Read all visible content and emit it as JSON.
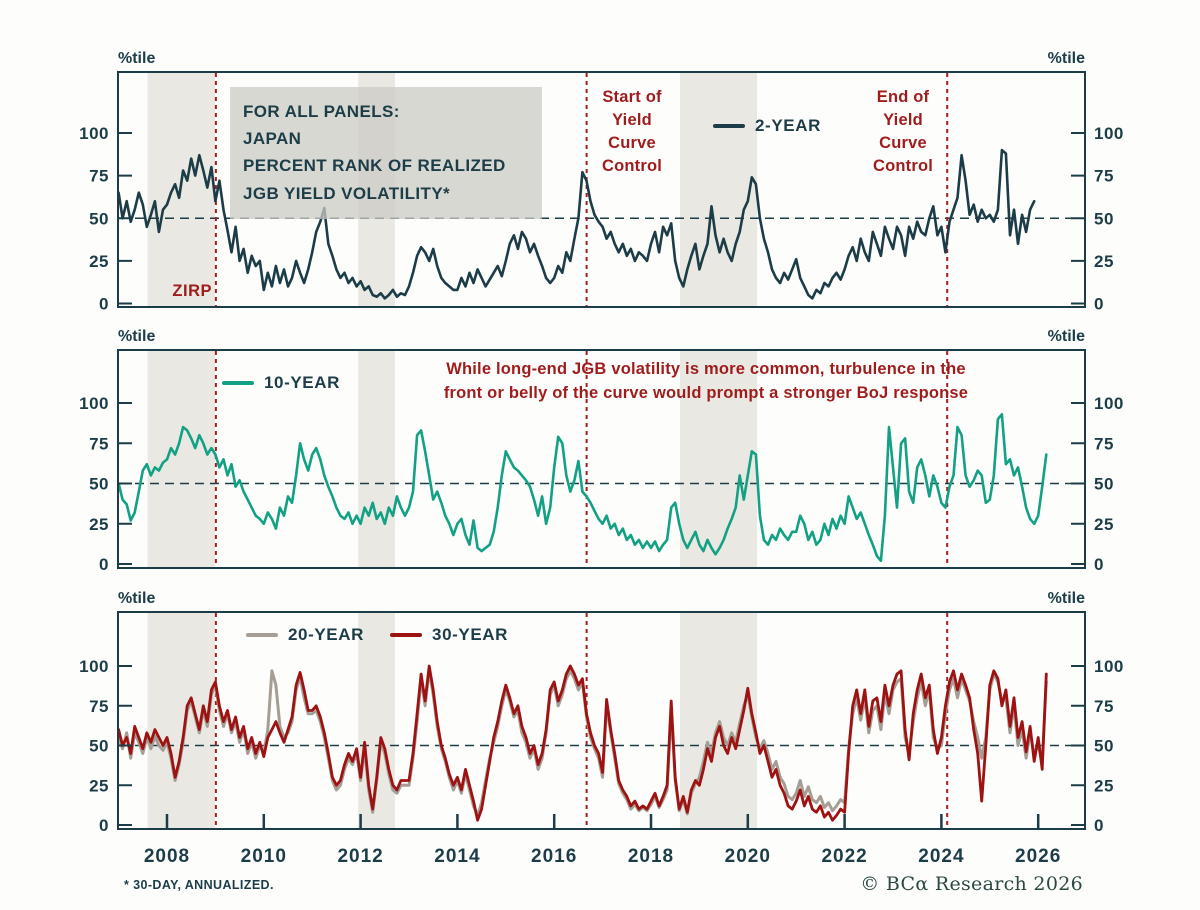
{
  "axis_unit_label": "%tile",
  "title_box": {
    "line1": "FOR ALL PANELS:",
    "line2": "JAPAN",
    "line3": "PERCENT RANK OF REALIZED",
    "line4": "JGB YIELD VOLATILITY*"
  },
  "annotations": {
    "zirp": "ZIRP",
    "start_ycc": {
      "lines": [
        "Start of",
        "Yield",
        "Curve",
        "Control"
      ]
    },
    "end_ycc": {
      "lines": [
        "End of",
        "Yield",
        "Curve",
        "Control"
      ]
    },
    "middle_note": {
      "line1": "While long-end JGB volatility is more common, turbulence in the",
      "line2": "front or belly of the curve would prompt a stronger BoJ response"
    }
  },
  "footer": {
    "footnote": "* 30-DAY, ANNUALIZED.",
    "copyright": "© BCα Research 2026"
  },
  "colors": {
    "dark": "#1c3d47",
    "event_red": "#a02020",
    "text_red": "#9e1c1c",
    "band": "#e9e8e2",
    "green": "#12a184",
    "gray": "#a59e95",
    "red_line": "#9e1212"
  },
  "chart_data": {
    "type": "line",
    "title": "Japan percent rank of realized JGB yield volatility (30-day, annualized)",
    "ylabel": "%tile",
    "ylim": [
      0,
      100
    ],
    "grid": "50%-dashed-line-only",
    "x_range": [
      2006.99,
      2026.97
    ],
    "x_ticks": [
      2008,
      2010,
      2012,
      2014,
      2016,
      2018,
      2020,
      2022,
      2024,
      2026
    ],
    "event_lines": [
      {
        "year": 2009.01,
        "label": "ZIRP"
      },
      {
        "year": 2016.67,
        "label": "Start of Yield Curve Control"
      },
      {
        "year": 2024.12,
        "label": "End of Yield Curve Control"
      }
    ],
    "shaded_bands": [
      [
        2007.6,
        2008.99
      ],
      [
        2011.95,
        2012.71
      ],
      [
        2018.6,
        2020.19
      ]
    ],
    "fifty_line": 50,
    "panels": [
      {
        "id": "panel-2-year",
        "legend": [
          {
            "label": "2-YEAR",
            "series": "two_year"
          }
        ],
        "series": [
          "two_year"
        ],
        "yticks": [
          0,
          25,
          50,
          75,
          100
        ]
      },
      {
        "id": "panel-10-year",
        "legend": [
          {
            "label": "10-YEAR",
            "series": "ten_year"
          }
        ],
        "series": [
          "ten_year"
        ],
        "yticks": [
          0,
          25,
          50,
          75,
          100
        ]
      },
      {
        "id": "panel-20-30-year",
        "legend": [
          {
            "label": "20-YEAR",
            "series": "twenty_year"
          },
          {
            "label": "30-YEAR",
            "series": "thirty_year"
          }
        ],
        "series": [
          "twenty_year",
          "thirty_year"
        ],
        "yticks": [
          0,
          25,
          50,
          75,
          100
        ]
      }
    ],
    "series": {
      "two_year": {
        "label": "2-YEAR",
        "color": "#1c3d47",
        "width": 2.6,
        "start": 2007.0,
        "step_years": 0.0833333,
        "values": [
          65,
          50,
          60,
          48,
          55,
          65,
          58,
          45,
          52,
          60,
          42,
          55,
          58,
          65,
          70,
          62,
          78,
          72,
          85,
          75,
          87,
          78,
          68,
          80,
          60,
          72,
          55,
          43,
          30,
          45,
          25,
          32,
          18,
          28,
          22,
          25,
          8,
          18,
          10,
          22,
          12,
          20,
          10,
          15,
          25,
          18,
          12,
          20,
          30,
          42,
          48,
          56,
          35,
          28,
          20,
          15,
          18,
          12,
          15,
          10,
          13,
          8,
          10,
          5,
          4,
          6,
          3,
          5,
          8,
          4,
          6,
          5,
          10,
          18,
          28,
          33,
          30,
          25,
          32,
          22,
          15,
          12,
          10,
          8,
          8,
          15,
          10,
          18,
          12,
          20,
          15,
          10,
          14,
          18,
          22,
          16,
          25,
          35,
          40,
          32,
          42,
          38,
          30,
          35,
          28,
          22,
          15,
          12,
          15,
          22,
          18,
          30,
          25,
          38,
          50,
          77,
          72,
          60,
          52,
          48,
          45,
          38,
          42,
          35,
          30,
          35,
          28,
          32,
          25,
          30,
          28,
          25,
          35,
          42,
          30,
          45,
          40,
          47,
          25,
          15,
          10,
          20,
          28,
          35,
          20,
          28,
          35,
          57,
          40,
          30,
          38,
          30,
          25,
          35,
          42,
          55,
          60,
          74,
          70,
          50,
          38,
          30,
          20,
          15,
          12,
          18,
          14,
          20,
          26,
          15,
          10,
          5,
          3,
          8,
          6,
          12,
          10,
          15,
          18,
          14,
          20,
          28,
          33,
          25,
          38,
          30,
          25,
          42,
          35,
          28,
          45,
          38,
          32,
          45,
          40,
          28,
          45,
          38,
          48,
          42,
          40,
          50,
          57,
          40,
          45,
          30,
          48,
          55,
          62,
          87,
          72,
          52,
          58,
          48,
          55,
          50,
          52,
          48,
          55,
          90,
          88,
          40,
          55,
          35,
          52,
          42,
          55,
          60
        ]
      },
      "ten_year": {
        "label": "10-YEAR",
        "color": "#12a184",
        "width": 2.6,
        "start": 2007.0,
        "step_years": 0.0833333,
        "values": [
          50,
          40,
          37,
          27,
          32,
          45,
          58,
          62,
          55,
          60,
          58,
          63,
          65,
          72,
          68,
          75,
          85,
          83,
          78,
          72,
          80,
          75,
          68,
          72,
          68,
          60,
          65,
          55,
          62,
          48,
          52,
          45,
          40,
          35,
          30,
          28,
          25,
          32,
          28,
          22,
          35,
          30,
          42,
          38,
          55,
          75,
          65,
          58,
          68,
          72,
          65,
          55,
          48,
          42,
          35,
          30,
          28,
          32,
          25,
          30,
          25,
          35,
          30,
          38,
          28,
          32,
          25,
          35,
          30,
          42,
          35,
          30,
          35,
          45,
          80,
          83,
          70,
          55,
          40,
          45,
          38,
          30,
          25,
          18,
          25,
          28,
          18,
          12,
          27,
          10,
          8,
          10,
          12,
          20,
          35,
          55,
          70,
          65,
          60,
          58,
          55,
          52,
          48,
          40,
          30,
          42,
          25,
          35,
          60,
          79,
          75,
          55,
          45,
          52,
          64,
          45,
          42,
          38,
          33,
          28,
          25,
          30,
          22,
          25,
          18,
          22,
          15,
          18,
          12,
          15,
          10,
          14,
          10,
          14,
          8,
          12,
          15,
          35,
          38,
          25,
          15,
          10,
          15,
          20,
          12,
          8,
          15,
          10,
          6,
          10,
          15,
          22,
          28,
          35,
          55,
          40,
          55,
          70,
          68,
          30,
          15,
          12,
          18,
          15,
          22,
          18,
          15,
          20,
          20,
          30,
          25,
          15,
          20,
          12,
          15,
          25,
          18,
          28,
          22,
          30,
          25,
          42,
          35,
          28,
          32,
          25,
          18,
          12,
          5,
          2,
          30,
          85,
          60,
          35,
          75,
          78,
          45,
          38,
          60,
          65,
          55,
          42,
          55,
          48,
          38,
          35,
          48,
          55,
          85,
          80,
          55,
          48,
          52,
          58,
          55,
          38,
          40,
          55,
          90,
          93,
          62,
          65,
          55,
          60,
          48,
          35,
          28,
          25,
          30,
          48,
          68
        ]
      },
      "twenty_year": {
        "label": "20-YEAR",
        "color": "#a59e95",
        "width": 3,
        "start": 2007.0,
        "step_years": 0.0833333,
        "values": [
          55,
          48,
          58,
          42,
          58,
          52,
          45,
          55,
          48,
          56,
          50,
          47,
          52,
          42,
          28,
          38,
          52,
          72,
          78,
          68,
          58,
          72,
          62,
          82,
          88,
          72,
          62,
          70,
          58,
          65,
          52,
          60,
          45,
          52,
          42,
          50,
          45,
          60,
          97,
          88,
          62,
          55,
          58,
          65,
          85,
          93,
          80,
          70,
          70,
          72,
          65,
          55,
          42,
          28,
          22,
          25,
          35,
          42,
          38,
          45,
          28,
          48,
          22,
          8,
          28,
          52,
          45,
          32,
          22,
          20,
          25,
          25,
          25,
          42,
          65,
          92,
          75,
          97,
          82,
          62,
          48,
          40,
          30,
          22,
          28,
          20,
          32,
          22,
          12,
          6,
          14,
          28,
          42,
          52,
          62,
          75,
          85,
          78,
          68,
          72,
          58,
          52,
          42,
          48,
          35,
          42,
          58,
          82,
          88,
          75,
          82,
          92,
          97,
          92,
          85,
          90,
          68,
          55,
          48,
          42,
          30,
          75,
          58,
          42,
          26,
          20,
          16,
          10,
          13,
          9,
          11,
          9,
          13,
          18,
          11,
          16,
          22,
          72,
          28,
          9,
          16,
          7,
          20,
          26,
          30,
          40,
          52,
          45,
          58,
          65,
          55,
          50,
          58,
          52,
          64,
          75,
          82,
          68,
          55,
          48,
          53,
          45,
          35,
          40,
          30,
          26,
          18,
          16,
          20,
          28,
          18,
          24,
          16,
          14,
          18,
          11,
          14,
          9,
          12,
          16,
          14,
          48,
          70,
          80,
          66,
          80,
          58,
          72,
          75,
          60,
          82,
          70,
          85,
          90,
          92,
          55,
          45,
          65,
          80,
          90,
          75,
          85,
          55,
          48,
          50,
          70,
          85,
          92,
          80,
          92,
          85,
          78,
          65,
          55,
          42,
          55,
          85,
          95,
          90,
          78,
          80,
          58,
          75,
          50,
          60,
          42,
          58,
          45,
          50,
          40,
          90
        ]
      },
      "thirty_year": {
        "label": "30-YEAR",
        "color": "#9e1212",
        "width": 2.8,
        "start": 2007.0,
        "step_years": 0.0833333,
        "values": [
          60,
          50,
          55,
          45,
          62,
          55,
          48,
          58,
          52,
          60,
          55,
          50,
          55,
          45,
          30,
          40,
          55,
          75,
          80,
          70,
          60,
          75,
          65,
          85,
          90,
          75,
          65,
          72,
          60,
          68,
          55,
          62,
          48,
          55,
          45,
          52,
          43,
          55,
          60,
          65,
          58,
          52,
          60,
          68,
          88,
          96,
          85,
          72,
          72,
          75,
          68,
          58,
          45,
          30,
          25,
          28,
          38,
          45,
          40,
          48,
          30,
          52,
          25,
          10,
          30,
          55,
          48,
          35,
          25,
          22,
          28,
          28,
          28,
          45,
          70,
          95,
          78,
          100,
          85,
          65,
          50,
          42,
          32,
          25,
          30,
          22,
          35,
          25,
          15,
          3,
          10,
          25,
          40,
          55,
          65,
          78,
          88,
          80,
          70,
          75,
          62,
          55,
          45,
          50,
          38,
          45,
          60,
          85,
          90,
          78,
          85,
          95,
          100,
          95,
          88,
          92,
          70,
          58,
          50,
          45,
          33,
          79,
          60,
          45,
          28,
          22,
          18,
          12,
          15,
          10,
          12,
          10,
          15,
          20,
          12,
          18,
          25,
          78,
          30,
          10,
          18,
          8,
          22,
          28,
          25,
          35,
          48,
          40,
          55,
          62,
          50,
          45,
          55,
          48,
          60,
          72,
          86,
          70,
          58,
          45,
          50,
          40,
          30,
          35,
          25,
          20,
          12,
          10,
          15,
          22,
          12,
          18,
          10,
          8,
          12,
          5,
          8,
          3,
          6,
          10,
          8,
          45,
          75,
          85,
          70,
          85,
          62,
          78,
          80,
          65,
          88,
          75,
          88,
          95,
          97,
          60,
          41,
          70,
          85,
          95,
          80,
          88,
          60,
          45,
          55,
          75,
          90,
          97,
          85,
          95,
          88,
          80,
          60,
          45,
          15,
          50,
          88,
          97,
          92,
          75,
          85,
          62,
          80,
          55,
          65,
          46,
          62,
          40,
          55,
          35,
          95
        ]
      }
    }
  }
}
